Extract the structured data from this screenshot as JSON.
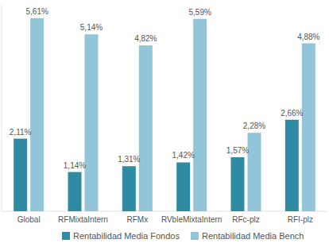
{
  "chart_data": {
    "type": "bar",
    "categories": [
      "Global",
      "RFMixtaIntern",
      "RFMx",
      "RVbleMixtaIntern",
      "RFc-plz",
      "RFI-plz"
    ],
    "series": [
      {
        "name": "Rentabilidad Media Fondos",
        "color": "#2f8aa3",
        "values": [
          2.11,
          1.14,
          1.31,
          1.42,
          1.57,
          2.66
        ],
        "value_labels": [
          "2,11%",
          "1,14%",
          "1,31%",
          "1,42%",
          "1,57%",
          "2,66%"
        ]
      },
      {
        "name": "Rentabilidad Media Bench",
        "color": "#92c5d8",
        "values": [
          5.61,
          5.14,
          4.82,
          5.59,
          2.28,
          4.88
        ],
        "value_labels": [
          "5,61%",
          "5,14%",
          "4,82%",
          "5,59%",
          "2,28%",
          "4,88%"
        ]
      }
    ],
    "ylim": [
      0,
      6
    ],
    "data_labels": true,
    "tick_labels": "x",
    "legend": "bottom"
  }
}
